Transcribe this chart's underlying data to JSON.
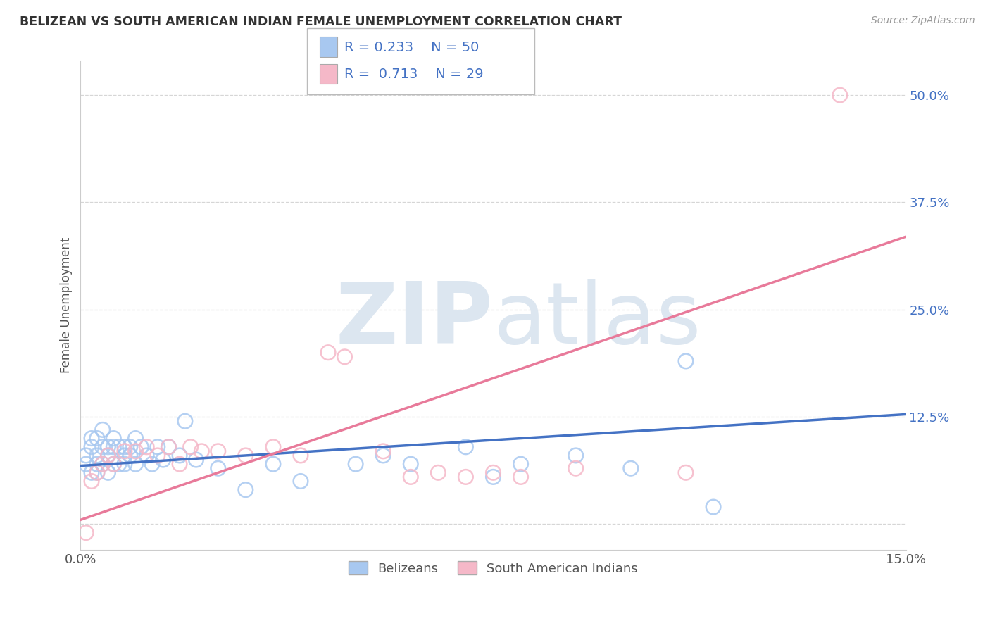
{
  "title": "BELIZEAN VS SOUTH AMERICAN INDIAN FEMALE UNEMPLOYMENT CORRELATION CHART",
  "source": "Source: ZipAtlas.com",
  "ylabel_label": "Female Unemployment",
  "x_min": 0.0,
  "x_max": 0.15,
  "y_min": -0.03,
  "y_max": 0.54,
  "x_ticks": [
    0.0,
    0.025,
    0.05,
    0.075,
    0.1,
    0.125,
    0.15
  ],
  "x_tick_labels": [
    "0.0%",
    "",
    "",
    "",
    "",
    "",
    "15.0%"
  ],
  "y_ticks": [
    0.0,
    0.125,
    0.25,
    0.375,
    0.5
  ],
  "y_tick_labels": [
    "",
    "12.5%",
    "25.0%",
    "37.5%",
    "50.0%"
  ],
  "grid_color": "#cccccc",
  "background_color": "#ffffff",
  "watermark_zip": "ZIP",
  "watermark_atlas": "atlas",
  "watermark_color": "#dce6f0",
  "legend_r1": "0.233",
  "legend_n1": "50",
  "legend_r2": "0.713",
  "legend_n2": "29",
  "series1_color": "#a8c8f0",
  "series2_color": "#f5b8c8",
  "line1_color": "#4472c4",
  "line2_color": "#e87a9a",
  "series1_name": "Belizeans",
  "series2_name": "South American Indians",
  "blue_x": [
    0.001,
    0.001,
    0.002,
    0.002,
    0.002,
    0.003,
    0.003,
    0.003,
    0.003,
    0.004,
    0.004,
    0.004,
    0.005,
    0.005,
    0.005,
    0.006,
    0.006,
    0.006,
    0.007,
    0.007,
    0.008,
    0.008,
    0.008,
    0.009,
    0.009,
    0.01,
    0.01,
    0.011,
    0.012,
    0.013,
    0.014,
    0.015,
    0.016,
    0.018,
    0.019,
    0.021,
    0.025,
    0.03,
    0.035,
    0.04,
    0.05,
    0.055,
    0.06,
    0.07,
    0.075,
    0.08,
    0.09,
    0.1,
    0.11,
    0.115
  ],
  "blue_y": [
    0.07,
    0.08,
    0.06,
    0.09,
    0.1,
    0.06,
    0.07,
    0.08,
    0.1,
    0.07,
    0.09,
    0.11,
    0.06,
    0.08,
    0.09,
    0.07,
    0.09,
    0.1,
    0.07,
    0.09,
    0.07,
    0.08,
    0.09,
    0.08,
    0.09,
    0.07,
    0.1,
    0.09,
    0.08,
    0.07,
    0.09,
    0.075,
    0.09,
    0.08,
    0.12,
    0.075,
    0.065,
    0.04,
    0.07,
    0.05,
    0.07,
    0.08,
    0.07,
    0.09,
    0.055,
    0.07,
    0.08,
    0.065,
    0.19,
    0.02
  ],
  "pink_x": [
    0.001,
    0.002,
    0.003,
    0.004,
    0.005,
    0.006,
    0.008,
    0.01,
    0.012,
    0.014,
    0.016,
    0.018,
    0.02,
    0.022,
    0.025,
    0.03,
    0.035,
    0.04,
    0.045,
    0.048,
    0.055,
    0.06,
    0.065,
    0.07,
    0.075,
    0.08,
    0.09,
    0.11,
    0.138
  ],
  "pink_y": [
    -0.01,
    0.05,
    0.06,
    0.07,
    0.08,
    0.07,
    0.085,
    0.085,
    0.09,
    0.08,
    0.09,
    0.07,
    0.09,
    0.085,
    0.085,
    0.08,
    0.09,
    0.08,
    0.2,
    0.195,
    0.085,
    0.055,
    0.06,
    0.055,
    0.06,
    0.055,
    0.065,
    0.06,
    0.5
  ],
  "line1_x": [
    0.0,
    0.15
  ],
  "line1_y": [
    0.068,
    0.128
  ],
  "line2_x": [
    0.0,
    0.15
  ],
  "line2_y": [
    0.005,
    0.335
  ]
}
